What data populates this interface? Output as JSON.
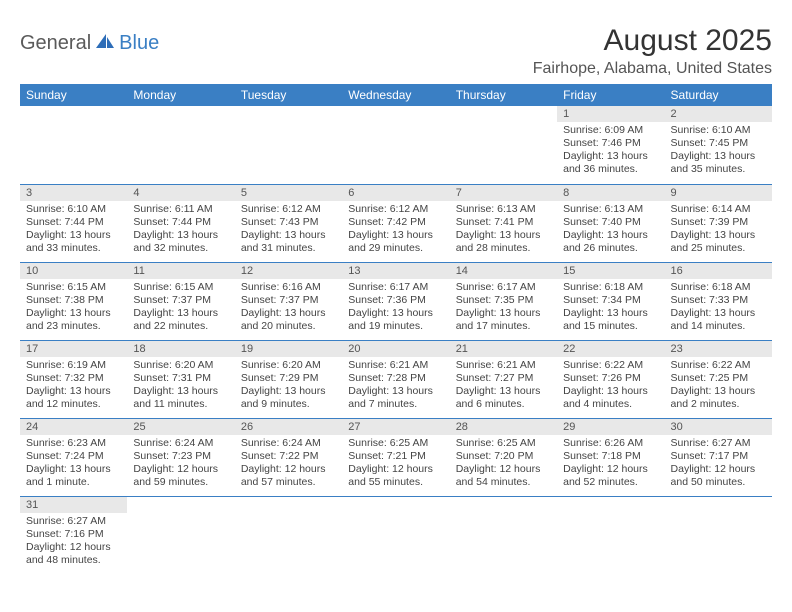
{
  "brand": {
    "part1": "General",
    "part2": "Blue"
  },
  "title": "August 2025",
  "location": "Fairhope, Alabama, United States",
  "colors": {
    "header_bg": "#3a7fc4",
    "header_text": "#ffffff",
    "daynum_bg": "#e8e8e8",
    "row_border": "#3a7fc4",
    "text": "#444444"
  },
  "weekdays": [
    "Sunday",
    "Monday",
    "Tuesday",
    "Wednesday",
    "Thursday",
    "Friday",
    "Saturday"
  ],
  "weeks": [
    [
      null,
      null,
      null,
      null,
      null,
      {
        "n": "1",
        "sr": "6:09 AM",
        "ss": "7:46 PM",
        "dl": "13 hours and 36 minutes."
      },
      {
        "n": "2",
        "sr": "6:10 AM",
        "ss": "7:45 PM",
        "dl": "13 hours and 35 minutes."
      }
    ],
    [
      {
        "n": "3",
        "sr": "6:10 AM",
        "ss": "7:44 PM",
        "dl": "13 hours and 33 minutes."
      },
      {
        "n": "4",
        "sr": "6:11 AM",
        "ss": "7:44 PM",
        "dl": "13 hours and 32 minutes."
      },
      {
        "n": "5",
        "sr": "6:12 AM",
        "ss": "7:43 PM",
        "dl": "13 hours and 31 minutes."
      },
      {
        "n": "6",
        "sr": "6:12 AM",
        "ss": "7:42 PM",
        "dl": "13 hours and 29 minutes."
      },
      {
        "n": "7",
        "sr": "6:13 AM",
        "ss": "7:41 PM",
        "dl": "13 hours and 28 minutes."
      },
      {
        "n": "8",
        "sr": "6:13 AM",
        "ss": "7:40 PM",
        "dl": "13 hours and 26 minutes."
      },
      {
        "n": "9",
        "sr": "6:14 AM",
        "ss": "7:39 PM",
        "dl": "13 hours and 25 minutes."
      }
    ],
    [
      {
        "n": "10",
        "sr": "6:15 AM",
        "ss": "7:38 PM",
        "dl": "13 hours and 23 minutes."
      },
      {
        "n": "11",
        "sr": "6:15 AM",
        "ss": "7:37 PM",
        "dl": "13 hours and 22 minutes."
      },
      {
        "n": "12",
        "sr": "6:16 AM",
        "ss": "7:37 PM",
        "dl": "13 hours and 20 minutes."
      },
      {
        "n": "13",
        "sr": "6:17 AM",
        "ss": "7:36 PM",
        "dl": "13 hours and 19 minutes."
      },
      {
        "n": "14",
        "sr": "6:17 AM",
        "ss": "7:35 PM",
        "dl": "13 hours and 17 minutes."
      },
      {
        "n": "15",
        "sr": "6:18 AM",
        "ss": "7:34 PM",
        "dl": "13 hours and 15 minutes."
      },
      {
        "n": "16",
        "sr": "6:18 AM",
        "ss": "7:33 PM",
        "dl": "13 hours and 14 minutes."
      }
    ],
    [
      {
        "n": "17",
        "sr": "6:19 AM",
        "ss": "7:32 PM",
        "dl": "13 hours and 12 minutes."
      },
      {
        "n": "18",
        "sr": "6:20 AM",
        "ss": "7:31 PM",
        "dl": "13 hours and 11 minutes."
      },
      {
        "n": "19",
        "sr": "6:20 AM",
        "ss": "7:29 PM",
        "dl": "13 hours and 9 minutes."
      },
      {
        "n": "20",
        "sr": "6:21 AM",
        "ss": "7:28 PM",
        "dl": "13 hours and 7 minutes."
      },
      {
        "n": "21",
        "sr": "6:21 AM",
        "ss": "7:27 PM",
        "dl": "13 hours and 6 minutes."
      },
      {
        "n": "22",
        "sr": "6:22 AM",
        "ss": "7:26 PM",
        "dl": "13 hours and 4 minutes."
      },
      {
        "n": "23",
        "sr": "6:22 AM",
        "ss": "7:25 PM",
        "dl": "13 hours and 2 minutes."
      }
    ],
    [
      {
        "n": "24",
        "sr": "6:23 AM",
        "ss": "7:24 PM",
        "dl": "13 hours and 1 minute."
      },
      {
        "n": "25",
        "sr": "6:24 AM",
        "ss": "7:23 PM",
        "dl": "12 hours and 59 minutes."
      },
      {
        "n": "26",
        "sr": "6:24 AM",
        "ss": "7:22 PM",
        "dl": "12 hours and 57 minutes."
      },
      {
        "n": "27",
        "sr": "6:25 AM",
        "ss": "7:21 PM",
        "dl": "12 hours and 55 minutes."
      },
      {
        "n": "28",
        "sr": "6:25 AM",
        "ss": "7:20 PM",
        "dl": "12 hours and 54 minutes."
      },
      {
        "n": "29",
        "sr": "6:26 AM",
        "ss": "7:18 PM",
        "dl": "12 hours and 52 minutes."
      },
      {
        "n": "30",
        "sr": "6:27 AM",
        "ss": "7:17 PM",
        "dl": "12 hours and 50 minutes."
      }
    ],
    [
      {
        "n": "31",
        "sr": "6:27 AM",
        "ss": "7:16 PM",
        "dl": "12 hours and 48 minutes."
      },
      null,
      null,
      null,
      null,
      null,
      null
    ]
  ],
  "labels": {
    "sunrise": "Sunrise: ",
    "sunset": "Sunset: ",
    "daylight": "Daylight: "
  }
}
